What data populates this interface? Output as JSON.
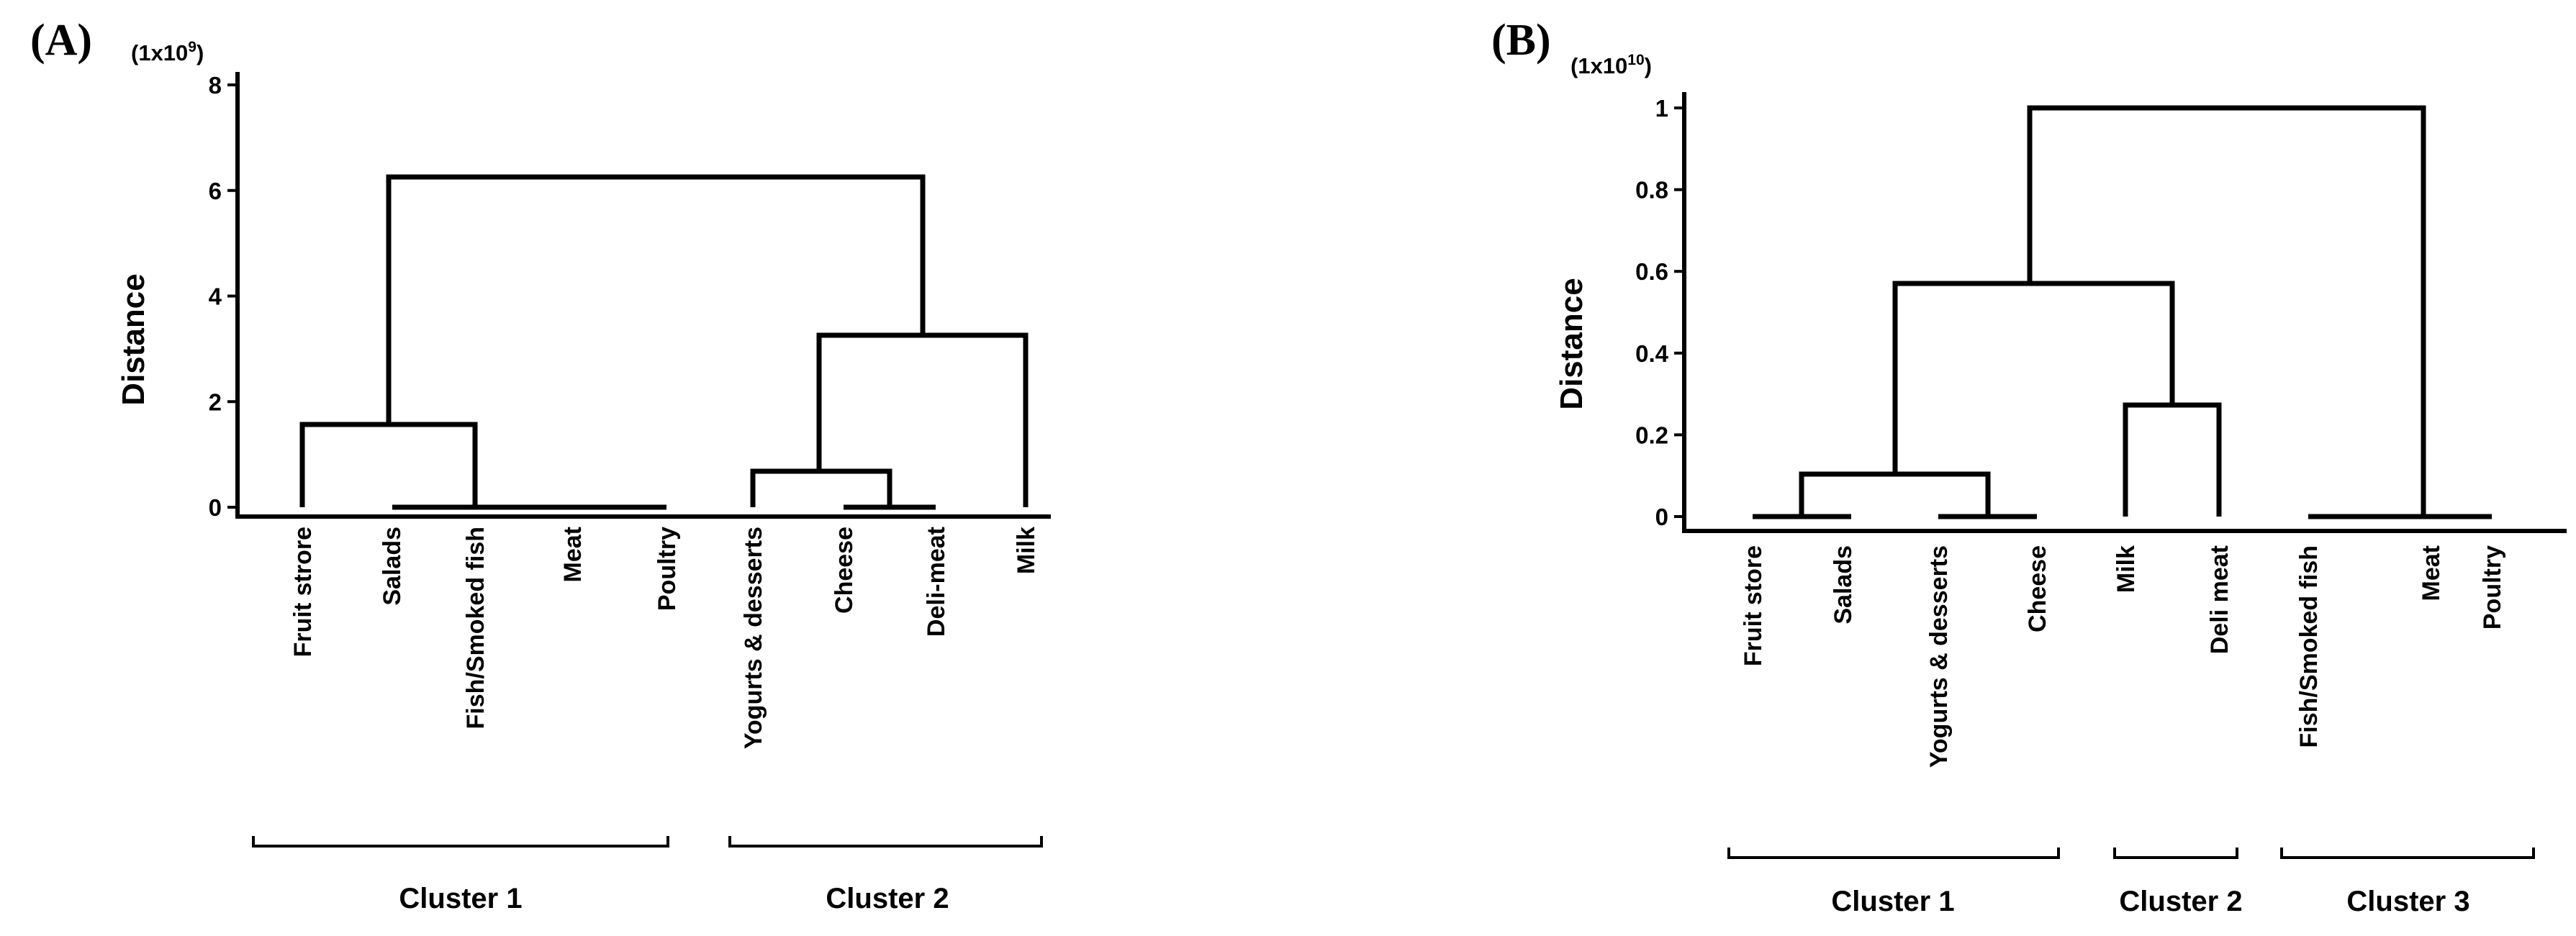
{
  "chart_data": [
    {
      "type": "dendrogram",
      "panel_label": "(A)",
      "scale_base": "(1x10",
      "scale_exp": "9",
      "scale_close": ")",
      "ylabel": "Distance",
      "ylim": [
        0,
        8
      ],
      "yticks": [
        "0",
        "2",
        "4",
        "6",
        "8"
      ],
      "leaves": [
        "Fruit strore",
        "Salads",
        "Fish/Smoked fish",
        "Meat",
        "Poultry",
        "Yogurts & desserts",
        "Cheese",
        "Deli-meat",
        "Milk"
      ],
      "merges": [
        {
          "left": "Salads",
          "right": "Fish/Smoked fish",
          "height": 0
        },
        {
          "left": "Fish/Smoked fish",
          "right": "Meat",
          "height": 0
        },
        {
          "left": "Meat",
          "right": "Poultry",
          "height": 0
        },
        {
          "left": "Fruit strore",
          "right": "Salads, Fish/Smoked fish, Meat, Poultry",
          "height": 1.6
        },
        {
          "left": "Cheese",
          "right": "Deli-meat",
          "height": 0
        },
        {
          "left": "Yogurts & desserts",
          "right": "Cheese, Deli-meat",
          "height": 0.7
        },
        {
          "left": "Yogurts & desserts, Cheese, Deli-meat",
          "right": "Milk",
          "height": 3.3
        },
        {
          "left": "Cluster 1",
          "right": "Cluster 2",
          "height": 6.2
        }
      ],
      "clusters": [
        {
          "label": "Cluster 1",
          "leaves": [
            "Fruit strore",
            "Salads",
            "Fish/Smoked fish",
            "Meat",
            "Poultry"
          ]
        },
        {
          "label": "Cluster 2",
          "leaves": [
            "Yogurts & desserts",
            "Cheese",
            "Deli-meat",
            "Milk"
          ]
        }
      ]
    },
    {
      "type": "dendrogram",
      "panel_label": "(B)",
      "scale_base": "(1x10",
      "scale_exp": "10",
      "scale_close": ")",
      "ylabel": "Distance",
      "ylim": [
        0,
        1
      ],
      "yticks": [
        "0",
        "0.2",
        "0.4",
        "0.6",
        "0.8",
        "1"
      ],
      "leaves": [
        "Fruit store",
        "Salads",
        "Yogurts & desserts",
        "Cheese",
        "Milk",
        "Deli meat",
        "Fish/Smoked fish",
        "Meat",
        "Poultry"
      ],
      "merges": [
        {
          "left": "Fruit store",
          "right": "Salads",
          "height": 0
        },
        {
          "left": "Yogurts & desserts",
          "right": "Cheese",
          "height": 0
        },
        {
          "left": "Fruit store, Salads",
          "right": "Yogurts & desserts, Cheese",
          "height": 0.11
        },
        {
          "left": "Milk",
          "right": "Deli meat",
          "height": 0.27
        },
        {
          "left": "Cluster 1",
          "right": "Cluster 2",
          "height": 0.56
        },
        {
          "left": "Fish/Smoked fish",
          "right": "Meat",
          "height": 0
        },
        {
          "left": "Meat",
          "right": "Poultry",
          "height": 0
        },
        {
          "left": "Cluster 1, Cluster 2",
          "right": "Cluster 3",
          "height": 0.98
        }
      ],
      "clusters": [
        {
          "label": "Cluster 1",
          "leaves": [
            "Fruit store",
            "Salads",
            "Yogurts & desserts",
            "Cheese"
          ]
        },
        {
          "label": "Cluster 2",
          "leaves": [
            "Milk",
            "Deli meat"
          ]
        },
        {
          "label": "Cluster 3",
          "leaves": [
            "Fish/Smoked fish",
            "Meat",
            "Poultry"
          ]
        }
      ]
    }
  ]
}
